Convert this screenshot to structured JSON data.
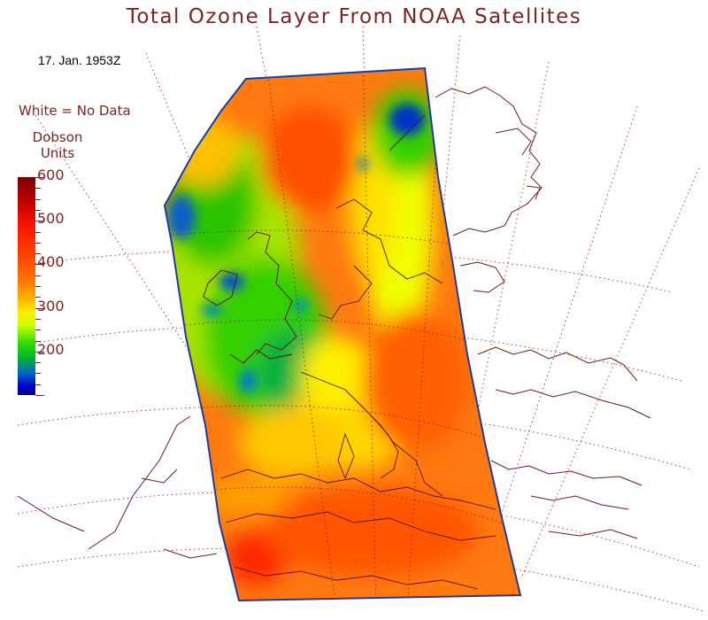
{
  "title": "Total Ozone Layer From NOAA Satellites",
  "date": "17. Jan. 1953Z",
  "legend": {
    "no_data_note": "White = No Data",
    "units_line1": "Dobson",
    "units_line2": "Units",
    "scale_labels": [
      "600",
      "500",
      "400",
      "300",
      "200"
    ],
    "scale_min": 100,
    "scale_max": 600
  },
  "colors": {
    "text": "#7a2424",
    "coastline": "#6b1b1b",
    "grid": "#9a3030"
  }
}
